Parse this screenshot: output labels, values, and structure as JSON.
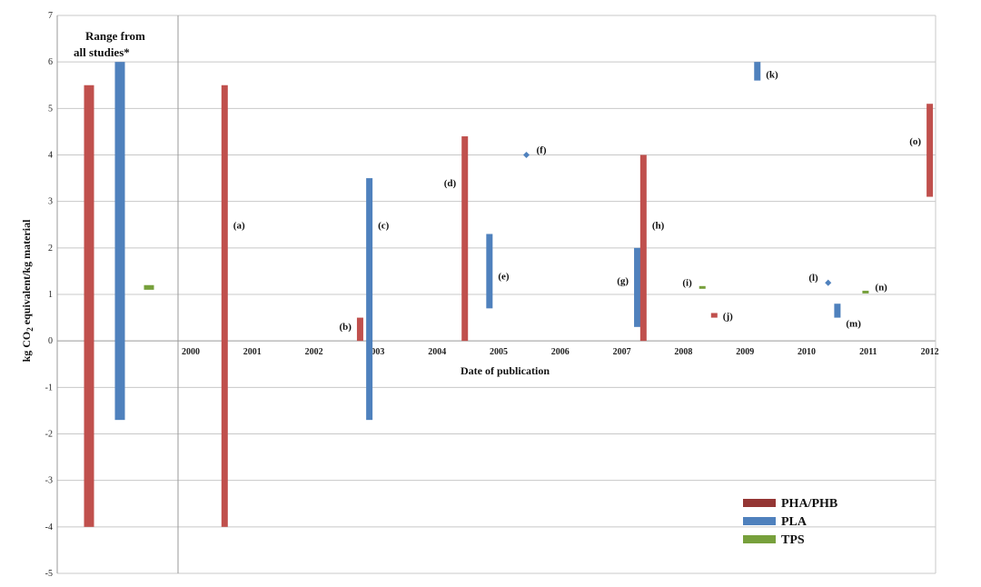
{
  "chart_data": {
    "type": "range-bar",
    "ylabel": "kg CO2 equivalent/kg material",
    "ylabel_sub": "2",
    "xlabel": "Date of publication",
    "ylim": [
      -5,
      7
    ],
    "yticks": [
      7,
      6,
      5,
      4,
      3,
      2,
      1,
      0,
      -1,
      -2,
      -3,
      -4,
      -5
    ],
    "xticks": [
      "2000",
      "2001",
      "2002",
      "2003",
      "2004",
      "2005",
      "2006",
      "2007",
      "2008",
      "2009",
      "2010",
      "2011",
      "2012"
    ],
    "grid": true,
    "range_panel_title": [
      "Range from",
      "all studies*"
    ],
    "colors": {
      "PHA/PHB": "#c0504d",
      "PLA": "#4f81bd",
      "TPS": "#77a03c",
      "PHA/PHB_legend": "#943634"
    },
    "legend": {
      "position": "bottom-right",
      "entries": [
        "PHA/PHB",
        "PLA",
        "TPS"
      ]
    },
    "overall_ranges": [
      {
        "series": "PHA/PHB",
        "low": -4.0,
        "high": 5.5
      },
      {
        "series": "PLA",
        "low": -1.7,
        "high": 6.0
      },
      {
        "series": "TPS",
        "low": 1.1,
        "high": 1.2
      }
    ],
    "studies": [
      {
        "label": "(a)",
        "series": "PHA/PHB",
        "x": 2000.55,
        "low": -4.0,
        "high": 5.5,
        "marker": "bar"
      },
      {
        "label": "(b)",
        "series": "PHA/PHB",
        "x": 2002.75,
        "low": 0.0,
        "high": 0.5,
        "marker": "bar"
      },
      {
        "label": "(c)",
        "series": "PLA",
        "x": 2002.9,
        "low": -1.7,
        "high": 3.5,
        "marker": "bar"
      },
      {
        "label": "(d)",
        "series": "PHA/PHB",
        "x": 2004.45,
        "low": 0.0,
        "high": 4.4,
        "marker": "bar"
      },
      {
        "label": "(e)",
        "series": "PLA",
        "x": 2004.85,
        "low": 0.7,
        "high": 2.3,
        "marker": "bar"
      },
      {
        "label": "(f)",
        "series": "PLA",
        "x": 2005.45,
        "low": 4.0,
        "high": 4.0,
        "marker": "point"
      },
      {
        "label": "(g)",
        "series": "PLA",
        "x": 2007.25,
        "low": 0.3,
        "high": 2.0,
        "marker": "bar"
      },
      {
        "label": "(h)",
        "series": "PHA/PHB",
        "x": 2007.35,
        "low": 0.0,
        "high": 4.0,
        "marker": "bar"
      },
      {
        "label": "(i)",
        "series": "TPS",
        "x": 2008.3,
        "low": 1.15,
        "high": 1.15,
        "marker": "point"
      },
      {
        "label": "(j)",
        "series": "PHA/PHB",
        "x": 2008.5,
        "low": 0.5,
        "high": 0.6,
        "marker": "bar"
      },
      {
        "label": "(k)",
        "series": "PLA",
        "x": 2009.2,
        "low": 5.6,
        "high": 6.0,
        "marker": "bar"
      },
      {
        "label": "(l)",
        "series": "PLA",
        "x": 2010.35,
        "low": 1.25,
        "high": 1.25,
        "marker": "point"
      },
      {
        "label": "(m)",
        "series": "PLA",
        "x": 2010.5,
        "low": 0.5,
        "high": 0.8,
        "marker": "bar"
      },
      {
        "label": "(n)",
        "series": "TPS",
        "x": 2010.95,
        "low": 1.05,
        "high": 1.05,
        "marker": "point"
      },
      {
        "label": "(o)",
        "series": "PHA/PHB",
        "x": 2012.0,
        "low": 3.1,
        "high": 5.1,
        "marker": "bar"
      }
    ]
  }
}
